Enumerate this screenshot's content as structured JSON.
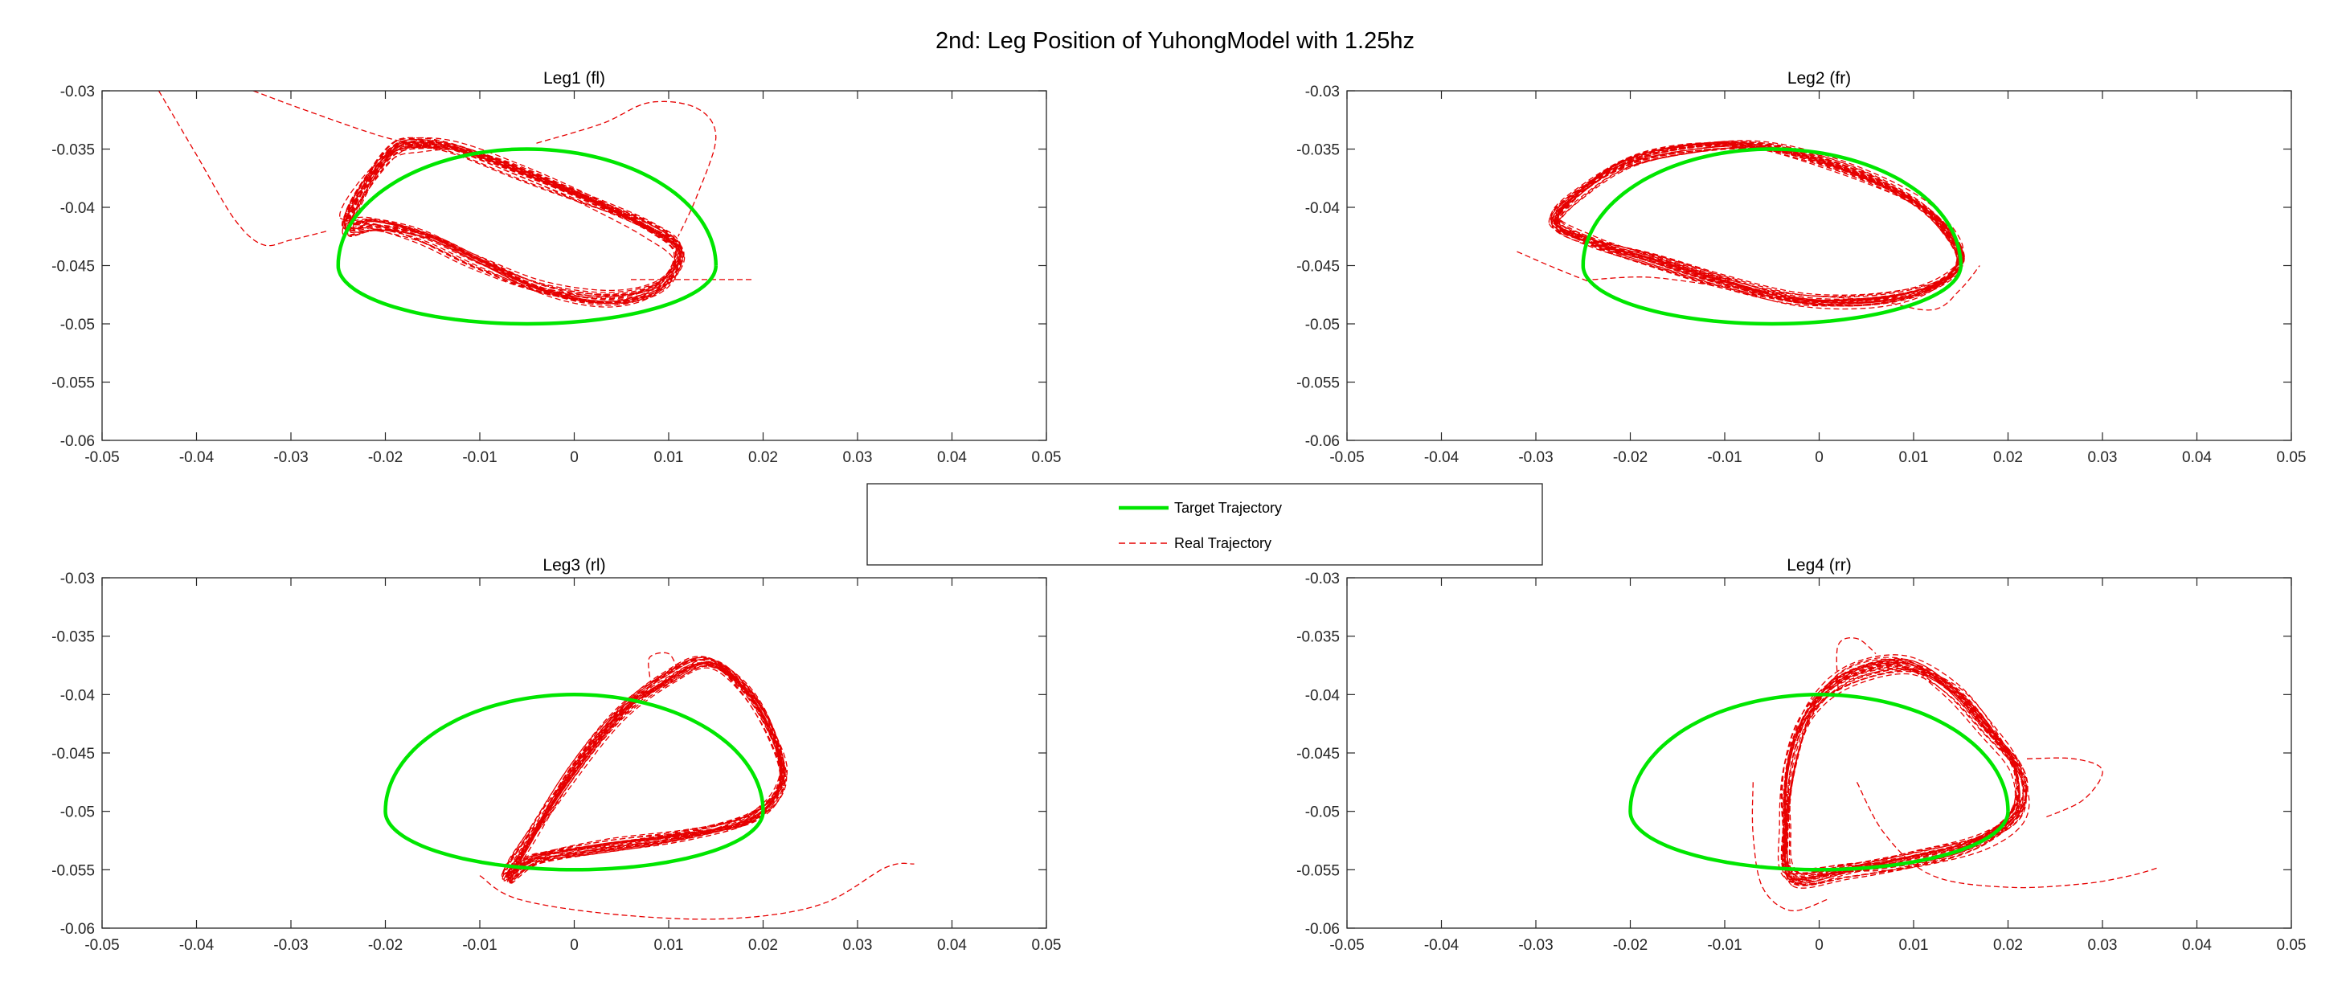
{
  "figure": {
    "suptitle": "2nd: Leg Position of YuhongModel with 1.25hz"
  },
  "colors": {
    "target": "#00e600",
    "real": "#e60000",
    "axis": "#262626"
  },
  "legend": {
    "placement": "center",
    "entries": [
      "Target Trajectory",
      "Real Trajectory"
    ]
  },
  "chart_data": [
    {
      "type": "line",
      "title": "Leg1 (fl)",
      "xlim": [
        -0.05,
        0.05
      ],
      "ylim": [
        -0.06,
        -0.03
      ],
      "xticks": [
        -0.05,
        -0.04,
        -0.03,
        -0.02,
        -0.01,
        0,
        0.01,
        0.02,
        0.03,
        0.04,
        0.05
      ],
      "xtick_labels": [
        "-0.05",
        "-0.04",
        "-0.03",
        "-0.02",
        "-0.01",
        "0",
        "0.01",
        "0.02",
        "0.03",
        "0.04",
        "0.05"
      ],
      "yticks": [
        -0.03,
        -0.035,
        -0.04,
        -0.045,
        -0.05,
        -0.055,
        -0.06
      ],
      "ytick_labels": [
        "-0.03",
        "-0.035",
        "-0.04",
        "-0.045",
        "-0.05",
        "-0.055",
        "-0.06"
      ],
      "target": {
        "center_x": -0.005,
        "center_y": -0.045,
        "half_width": 0.02,
        "top": -0.035,
        "bottom": -0.05
      },
      "real": [
        {
          "loop": [
            [
              -0.024,
              -0.0415
            ],
            [
              -0.022,
              -0.038
            ],
            [
              -0.019,
              -0.035
            ],
            [
              -0.016,
              -0.0345
            ],
            [
              -0.012,
              -0.035
            ],
            [
              -0.006,
              -0.0368
            ],
            [
              0.002,
              -0.0395
            ],
            [
              0.008,
              -0.0418
            ],
            [
              0.011,
              -0.0438
            ],
            [
              0.009,
              -0.0468
            ],
            [
              0.004,
              -0.048
            ],
            [
              -0.003,
              -0.0472
            ],
            [
              -0.01,
              -0.0448
            ],
            [
              -0.016,
              -0.0425
            ],
            [
              -0.021,
              -0.0415
            ],
            [
              -0.024,
              -0.0415
            ]
          ],
          "repeats": 26,
          "jitter": 0.0011
        },
        {
          "path": [
            [
              -0.044,
              -0.03
            ],
            [
              -0.04,
              -0.0355
            ],
            [
              -0.036,
              -0.041
            ],
            [
              -0.033,
              -0.0432
            ],
            [
              -0.03,
              -0.0428
            ],
            [
              -0.026,
              -0.042
            ]
          ]
        },
        {
          "path": [
            [
              -0.034,
              -0.03
            ],
            [
              -0.028,
              -0.0318
            ],
            [
              -0.02,
              -0.034
            ],
            [
              -0.014,
              -0.035
            ]
          ]
        },
        {
          "path": [
            [
              -0.004,
              -0.0345
            ],
            [
              0.003,
              -0.0328
            ],
            [
              0.008,
              -0.031
            ],
            [
              0.013,
              -0.0315
            ],
            [
              0.015,
              -0.034
            ],
            [
              0.013,
              -0.039
            ],
            [
              0.011,
              -0.0425
            ]
          ]
        },
        {
          "path": [
            [
              0.006,
              -0.0462
            ],
            [
              0.012,
              -0.0462
            ],
            [
              0.019,
              -0.0462
            ]
          ]
        }
      ]
    },
    {
      "type": "line",
      "title": "Leg2 (fr)",
      "xlim": [
        -0.05,
        0.05
      ],
      "ylim": [
        -0.06,
        -0.03
      ],
      "xticks": [
        -0.05,
        -0.04,
        -0.03,
        -0.02,
        -0.01,
        0,
        0.01,
        0.02,
        0.03,
        0.04,
        0.05
      ],
      "xtick_labels": [
        "-0.05",
        "-0.04",
        "-0.03",
        "-0.02",
        "-0.01",
        "0",
        "0.01",
        "0.02",
        "0.03",
        "0.04",
        "0.05"
      ],
      "yticks": [
        -0.03,
        -0.035,
        -0.04,
        -0.045,
        -0.05,
        -0.055,
        -0.06
      ],
      "ytick_labels": [
        "-0.03",
        "-0.035",
        "-0.04",
        "-0.045",
        "-0.05",
        "-0.055",
        "-0.06"
      ],
      "target": {
        "center_x": -0.005,
        "center_y": -0.045,
        "half_width": 0.02,
        "top": -0.035,
        "bottom": -0.05
      },
      "real": [
        {
          "loop": [
            [
              -0.028,
              -0.0412
            ],
            [
              -0.025,
              -0.0385
            ],
            [
              -0.02,
              -0.036
            ],
            [
              -0.013,
              -0.0348
            ],
            [
              -0.006,
              -0.0348
            ],
            [
              0.002,
              -0.0365
            ],
            [
              0.009,
              -0.039
            ],
            [
              0.013,
              -0.0415
            ],
            [
              0.015,
              -0.0445
            ],
            [
              0.012,
              -0.0468
            ],
            [
              0.006,
              -0.048
            ],
            [
              -0.002,
              -0.048
            ],
            [
              -0.01,
              -0.0465
            ],
            [
              -0.018,
              -0.0445
            ],
            [
              -0.024,
              -0.043
            ],
            [
              -0.028,
              -0.0412
            ]
          ],
          "repeats": 26,
          "jitter": 0.0008
        },
        {
          "path": [
            [
              -0.032,
              -0.0438
            ],
            [
              -0.028,
              -0.0452
            ],
            [
              -0.024,
              -0.0465
            ]
          ]
        },
        {
          "path": [
            [
              -0.024,
              -0.0462
            ],
            [
              -0.018,
              -0.046
            ],
            [
              -0.01,
              -0.0468
            ],
            [
              -0.002,
              -0.0475
            ],
            [
              0.006,
              -0.048
            ],
            [
              0.012,
              -0.0488
            ],
            [
              0.015,
              -0.047
            ],
            [
              0.017,
              -0.045
            ]
          ]
        }
      ]
    },
    {
      "type": "line",
      "title": "Leg3 (rl)",
      "xlim": [
        -0.05,
        0.05
      ],
      "ylim": [
        -0.06,
        -0.03
      ],
      "xticks": [
        -0.05,
        -0.04,
        -0.03,
        -0.02,
        -0.01,
        0,
        0.01,
        0.02,
        0.03,
        0.04,
        0.05
      ],
      "xtick_labels": [
        "-0.05",
        "-0.04",
        "-0.03",
        "-0.02",
        "-0.01",
        "0",
        "0.01",
        "0.02",
        "0.03",
        "0.04",
        "0.05"
      ],
      "yticks": [
        -0.03,
        -0.035,
        -0.04,
        -0.045,
        -0.05,
        -0.055,
        -0.06
      ],
      "ytick_labels": [
        "-0.03",
        "-0.035",
        "-0.04",
        "-0.045",
        "-0.05",
        "-0.055",
        "-0.06"
      ],
      "target": {
        "center_x": 0,
        "center_y": -0.05,
        "half_width": 0.02,
        "top": -0.04,
        "bottom": -0.055
      },
      "real": [
        {
          "loop": [
            [
              -0.007,
              -0.0555
            ],
            [
              -0.004,
              -0.0515
            ],
            [
              0.0,
              -0.0465
            ],
            [
              0.005,
              -0.0415
            ],
            [
              0.01,
              -0.0385
            ],
            [
              0.014,
              -0.0372
            ],
            [
              0.018,
              -0.0395
            ],
            [
              0.021,
              -0.0435
            ],
            [
              0.022,
              -0.0475
            ],
            [
              0.019,
              -0.0505
            ],
            [
              0.012,
              -0.052
            ],
            [
              0.003,
              -0.053
            ],
            [
              -0.004,
              -0.054
            ],
            [
              -0.007,
              -0.0555
            ]
          ],
          "repeats": 26,
          "jitter": 0.0009
        },
        {
          "path": [
            [
              -0.01,
              -0.0555
            ],
            [
              -0.006,
              -0.0575
            ],
            [
              0.004,
              -0.0588
            ],
            [
              0.016,
              -0.0592
            ],
            [
              0.026,
              -0.058
            ],
            [
              0.033,
              -0.0548
            ],
            [
              0.036,
              -0.0545
            ]
          ]
        },
        {
          "path": [
            [
              0.008,
              -0.0385
            ],
            [
              0.008,
              -0.0368
            ],
            [
              0.01,
              -0.0365
            ],
            [
              0.011,
              -0.038
            ]
          ]
        }
      ]
    },
    {
      "type": "line",
      "title": "Leg4 (rr)",
      "xlim": [
        -0.05,
        0.05
      ],
      "ylim": [
        -0.06,
        -0.03
      ],
      "xticks": [
        -0.05,
        -0.04,
        -0.03,
        -0.02,
        -0.01,
        0,
        0.01,
        0.02,
        0.03,
        0.04,
        0.05
      ],
      "xtick_labels": [
        "-0.05",
        "-0.04",
        "-0.03",
        "-0.02",
        "-0.01",
        "0",
        "0.01",
        "0.02",
        "0.03",
        "0.04",
        "0.05"
      ],
      "yticks": [
        -0.03,
        -0.035,
        -0.04,
        -0.045,
        -0.05,
        -0.055,
        -0.06
      ],
      "ytick_labels": [
        "-0.03",
        "-0.035",
        "-0.04",
        "-0.045",
        "-0.05",
        "-0.055",
        "-0.06"
      ],
      "target": {
        "center_x": 0,
        "center_y": -0.05,
        "half_width": 0.02,
        "top": -0.04,
        "bottom": -0.055
      },
      "real": [
        {
          "loop": [
            [
              -0.003,
              -0.0555
            ],
            [
              -0.0035,
              -0.051
            ],
            [
              -0.003,
              -0.046
            ],
            [
              -0.001,
              -0.0415
            ],
            [
              0.003,
              -0.0385
            ],
            [
              0.009,
              -0.0375
            ],
            [
              0.014,
              -0.0395
            ],
            [
              0.018,
              -0.043
            ],
            [
              0.021,
              -0.0465
            ],
            [
              0.021,
              -0.05
            ],
            [
              0.017,
              -0.0525
            ],
            [
              0.01,
              -0.054
            ],
            [
              0.003,
              -0.055
            ],
            [
              -0.003,
              -0.0555
            ]
          ],
          "repeats": 26,
          "jitter": 0.0011
        },
        {
          "path": [
            [
              -0.007,
              -0.0475
            ],
            [
              -0.007,
              -0.052
            ],
            [
              -0.006,
              -0.0565
            ],
            [
              -0.003,
              -0.0585
            ],
            [
              0.001,
              -0.0575
            ]
          ]
        },
        {
          "path": [
            [
              0.004,
              -0.0475
            ],
            [
              0.007,
              -0.052
            ],
            [
              0.012,
              -0.0555
            ],
            [
              0.02,
              -0.0565
            ],
            [
              0.028,
              -0.0562
            ],
            [
              0.033,
              -0.0555
            ],
            [
              0.036,
              -0.0548
            ]
          ]
        },
        {
          "path": [
            [
              0.022,
              -0.0455
            ],
            [
              0.027,
              -0.0455
            ],
            [
              0.03,
              -0.0465
            ],
            [
              0.028,
              -0.049
            ],
            [
              0.024,
              -0.0505
            ]
          ]
        },
        {
          "path": [
            [
              0.002,
              -0.0395
            ],
            [
              0.002,
              -0.0358
            ],
            [
              0.004,
              -0.0352
            ],
            [
              0.006,
              -0.0365
            ]
          ]
        }
      ]
    }
  ]
}
